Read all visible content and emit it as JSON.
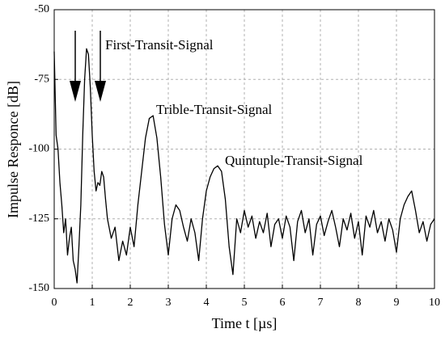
{
  "chart_data": {
    "type": "line",
    "x_label": "Time t [µs]",
    "y_label": "Impulse Responce [dB]",
    "annotations": [
      "First-Transit-Signal",
      "Trible-Transit-Signal",
      "Quintuple-Transit-Signal"
    ],
    "xlim": [
      0,
      10
    ],
    "ylim": [
      -150,
      -50
    ],
    "xticks": [
      0,
      1,
      2,
      3,
      4,
      5,
      6,
      7,
      8,
      9,
      10
    ],
    "yticks": [
      -150,
      -125,
      -100,
      -75,
      -50
    ],
    "grid": true,
    "series": [
      {
        "color": "#000000",
        "x": [
          0,
          0.05,
          0.1,
          0.15,
          0.2,
          0.25,
          0.3,
          0.35,
          0.4,
          0.45,
          0.5,
          0.55,
          0.6,
          0.65,
          0.7,
          0.75,
          0.8,
          0.85,
          0.9,
          0.95,
          1.0,
          1.05,
          1.1,
          1.15,
          1.2,
          1.25,
          1.3,
          1.35,
          1.4,
          1.5,
          1.6,
          1.7,
          1.8,
          1.9,
          2.0,
          2.1,
          2.2,
          2.3,
          2.4,
          2.5,
          2.6,
          2.7,
          2.8,
          2.9,
          3.0,
          3.1,
          3.2,
          3.3,
          3.4,
          3.5,
          3.6,
          3.7,
          3.8,
          3.9,
          4.0,
          4.1,
          4.2,
          4.3,
          4.4,
          4.5,
          4.6,
          4.7,
          4.8,
          4.9,
          5.0,
          5.1,
          5.2,
          5.3,
          5.4,
          5.5,
          5.6,
          5.7,
          5.8,
          5.9,
          6.0,
          6.1,
          6.2,
          6.3,
          6.4,
          6.5,
          6.6,
          6.7,
          6.8,
          6.9,
          7.0,
          7.1,
          7.2,
          7.3,
          7.4,
          7.5,
          7.6,
          7.7,
          7.8,
          7.9,
          8.0,
          8.1,
          8.2,
          8.3,
          8.4,
          8.5,
          8.6,
          8.7,
          8.8,
          8.9,
          9.0,
          9.1,
          9.2,
          9.3,
          9.4,
          9.5,
          9.6,
          9.7,
          9.8,
          9.9,
          10.0
        ],
        "values": [
          -65,
          -95,
          -100,
          -112,
          -120,
          -130,
          -125,
          -138,
          -132,
          -128,
          -140,
          -143,
          -148,
          -135,
          -120,
          -95,
          -75,
          -64,
          -66,
          -78,
          -95,
          -108,
          -115,
          -112,
          -113,
          -108,
          -110,
          -118,
          -125,
          -132,
          -128,
          -140,
          -133,
          -138,
          -128,
          -135,
          -120,
          -108,
          -96,
          -89,
          -88,
          -96,
          -110,
          -127,
          -138,
          -125,
          -120,
          -122,
          -128,
          -133,
          -125,
          -130,
          -140,
          -125,
          -115,
          -110,
          -107,
          -106,
          -108,
          -118,
          -135,
          -145,
          -125,
          -130,
          -122,
          -128,
          -124,
          -132,
          -126,
          -130,
          -123,
          -135,
          -127,
          -125,
          -132,
          -124,
          -128,
          -140,
          -126,
          -122,
          -130,
          -125,
          -138,
          -127,
          -124,
          -131,
          -126,
          -122,
          -128,
          -135,
          -125,
          -129,
          -123,
          -132,
          -126,
          -138,
          -124,
          -128,
          -122,
          -130,
          -126,
          -133,
          -125,
          -129,
          -137,
          -125,
          -120,
          -117,
          -115,
          -122,
          -130,
          -126,
          -133,
          -127,
          -125
        ]
      }
    ]
  }
}
